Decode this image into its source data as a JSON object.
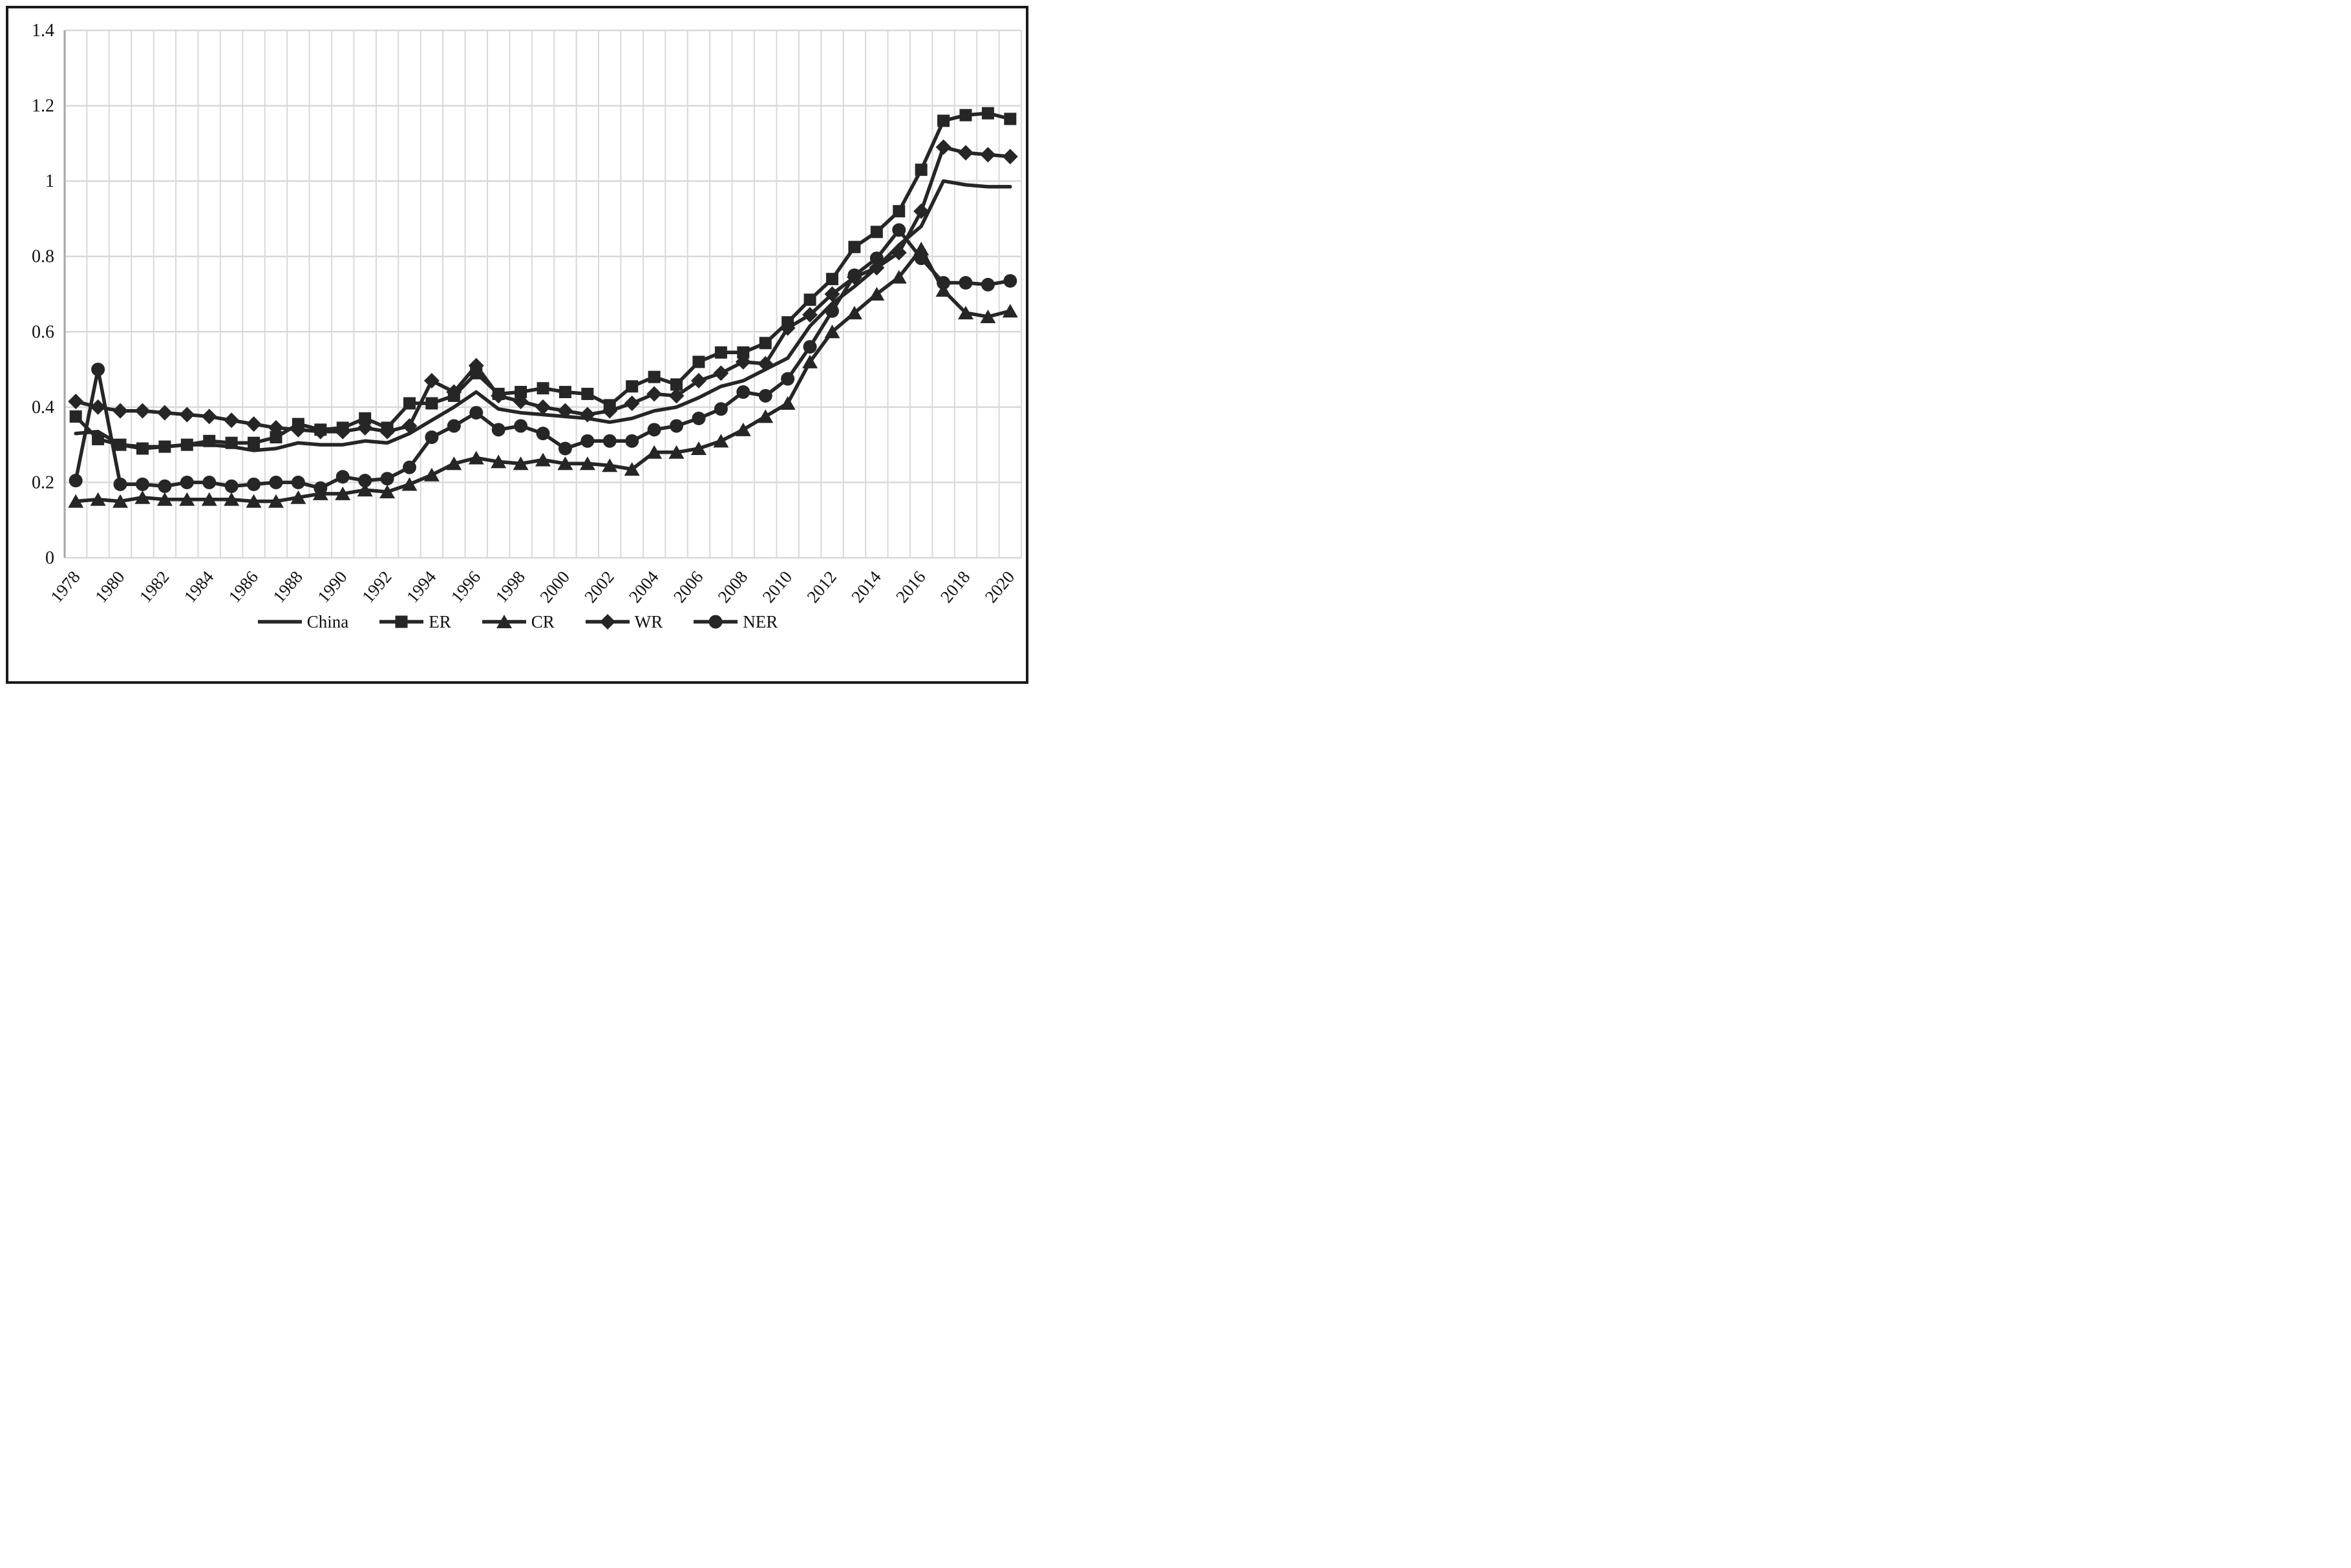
{
  "figure": {
    "border_color": "#1a1a1a",
    "background": "#ffffff"
  },
  "chart_data": {
    "type": "line",
    "title": "",
    "xlabel": "",
    "ylabel": "",
    "ylim": [
      0,
      1.4
    ],
    "grid": true,
    "legend_position": "bottom",
    "colors": {
      "series": "#262626",
      "gridline": "#d9d9d9",
      "axis_line": "#a6a6a6",
      "tick_label": "#111111"
    },
    "categories": [
      1978,
      1979,
      1980,
      1981,
      1982,
      1983,
      1984,
      1985,
      1986,
      1987,
      1988,
      1989,
      1990,
      1991,
      1992,
      1993,
      1994,
      1995,
      1996,
      1997,
      1998,
      1999,
      2000,
      2001,
      2002,
      2003,
      2004,
      2005,
      2006,
      2007,
      2008,
      2009,
      2010,
      2011,
      2012,
      2013,
      2014,
      2015,
      2016,
      2017,
      2018,
      2019,
      2020
    ],
    "x_tick_labels": [
      "1978",
      "1980",
      "1982",
      "1984",
      "1986",
      "1988",
      "1990",
      "1992",
      "1994",
      "1996",
      "1998",
      "2000",
      "2002",
      "2004",
      "2006",
      "2008",
      "2010",
      "2012",
      "2014",
      "2016",
      "2018",
      "2020"
    ],
    "y_tick_labels": [
      "0",
      "0.2",
      "0.4",
      "0.6",
      "0.8",
      "1",
      "1.2",
      "1.4"
    ],
    "y_tick_values": [
      0,
      0.2,
      0.4,
      0.6,
      0.8,
      1,
      1.2,
      1.4
    ],
    "series": [
      {
        "name": "China",
        "marker": "none",
        "values": [
          0.33,
          0.335,
          0.3,
          0.295,
          0.295,
          0.3,
          0.3,
          0.295,
          0.285,
          0.29,
          0.305,
          0.3,
          0.3,
          0.31,
          0.305,
          0.33,
          0.365,
          0.4,
          0.44,
          0.395,
          0.385,
          0.38,
          0.375,
          0.37,
          0.36,
          0.37,
          0.39,
          0.4,
          0.425,
          0.455,
          0.47,
          0.5,
          0.53,
          0.615,
          0.675,
          0.72,
          0.77,
          0.83,
          0.88,
          1.0,
          0.99,
          0.985,
          0.985
        ]
      },
      {
        "name": "ER",
        "marker": "square",
        "values": [
          0.375,
          0.315,
          0.3,
          0.29,
          0.295,
          0.3,
          0.31,
          0.305,
          0.305,
          0.32,
          0.355,
          0.34,
          0.345,
          0.37,
          0.345,
          0.41,
          0.41,
          0.43,
          0.49,
          0.435,
          0.44,
          0.45,
          0.44,
          0.435,
          0.405,
          0.455,
          0.48,
          0.46,
          0.52,
          0.545,
          0.545,
          0.57,
          0.625,
          0.685,
          0.74,
          0.825,
          0.865,
          0.92,
          1.03,
          1.16,
          1.175,
          1.18,
          1.165
        ]
      },
      {
        "name": "CR",
        "marker": "triangle",
        "values": [
          0.15,
          0.155,
          0.15,
          0.16,
          0.155,
          0.155,
          0.155,
          0.155,
          0.15,
          0.15,
          0.16,
          0.17,
          0.17,
          0.18,
          0.175,
          0.195,
          0.22,
          0.25,
          0.265,
          0.255,
          0.25,
          0.26,
          0.25,
          0.25,
          0.245,
          0.235,
          0.28,
          0.28,
          0.29,
          0.31,
          0.34,
          0.375,
          0.41,
          0.52,
          0.6,
          0.65,
          0.7,
          0.745,
          0.82,
          0.71,
          0.65,
          0.64,
          0.655
        ]
      },
      {
        "name": "WR",
        "marker": "diamond",
        "values": [
          0.415,
          0.4,
          0.39,
          0.39,
          0.385,
          0.38,
          0.375,
          0.365,
          0.355,
          0.345,
          0.34,
          0.335,
          0.335,
          0.345,
          0.335,
          0.35,
          0.47,
          0.44,
          0.51,
          0.43,
          0.415,
          0.4,
          0.39,
          0.38,
          0.39,
          0.41,
          0.435,
          0.43,
          0.47,
          0.49,
          0.52,
          0.515,
          0.61,
          0.645,
          0.7,
          0.745,
          0.77,
          0.81,
          0.92,
          1.09,
          1.075,
          1.07,
          1.065
        ]
      },
      {
        "name": "NER",
        "marker": "circle",
        "values": [
          0.205,
          0.5,
          0.195,
          0.195,
          0.19,
          0.2,
          0.2,
          0.19,
          0.195,
          0.2,
          0.2,
          0.185,
          0.215,
          0.205,
          0.21,
          0.24,
          0.32,
          0.35,
          0.385,
          0.34,
          0.35,
          0.33,
          0.29,
          0.31,
          0.31,
          0.31,
          0.34,
          0.35,
          0.37,
          0.395,
          0.44,
          0.43,
          0.475,
          0.56,
          0.655,
          0.75,
          0.795,
          0.87,
          0.795,
          0.73,
          0.73,
          0.725,
          0.735
        ]
      }
    ],
    "legend": [
      {
        "label": "China",
        "marker": "none"
      },
      {
        "label": "ER",
        "marker": "square"
      },
      {
        "label": "CR",
        "marker": "triangle"
      },
      {
        "label": "WR",
        "marker": "diamond"
      },
      {
        "label": "NER",
        "marker": "circle"
      }
    ]
  }
}
